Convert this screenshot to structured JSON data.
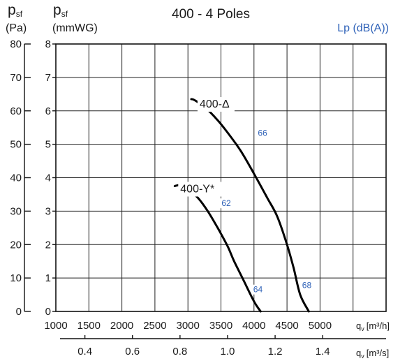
{
  "chart_data": {
    "type": "line",
    "title": "400 - 4 Poles",
    "y_left_outer": {
      "symbol": "p",
      "sub": "sf",
      "unit": "(Pa)",
      "ticks": [
        "80",
        "70",
        "60",
        "50",
        "40",
        "30",
        "20",
        "10",
        "0"
      ],
      "lim": [
        0,
        80
      ]
    },
    "y_left_inner": {
      "symbol": "p",
      "sub": "sf",
      "unit": "(mmWG)",
      "ticks": [
        "8",
        "7",
        "6",
        "5",
        "4",
        "3",
        "2",
        "1",
        "0"
      ],
      "lim": [
        0,
        8
      ]
    },
    "x_top": {
      "ticks": [
        "1000",
        "1500",
        "2000",
        "2500",
        "3000",
        "3500",
        "4000",
        "4500",
        "5000"
      ],
      "label_sym": "q",
      "label_sub": "v",
      "label_unit": "[m³/h]",
      "lim": [
        1000,
        6000
      ]
    },
    "x_bottom": {
      "ticks": [
        "0.4",
        "0.6",
        "0.8",
        "1.0",
        "1.2",
        "1.4"
      ],
      "label_sym": "q",
      "label_sub": "v",
      "label_unit": "[m³/s]"
    },
    "legend_title": "Lp (dB(A))",
    "grid": true,
    "series": [
      {
        "name": "400-Δ",
        "points": [
          [
            3050,
            63.5
          ],
          [
            3100,
            63.2
          ],
          [
            3250,
            61.2
          ],
          [
            3450,
            57.2
          ],
          [
            3600,
            53.5
          ],
          [
            3800,
            48.0
          ],
          [
            4000,
            41.2
          ],
          [
            4200,
            34.0
          ],
          [
            4350,
            28.5
          ],
          [
            4500,
            20.0
          ],
          [
            4600,
            13.0
          ],
          [
            4700,
            5.0
          ],
          [
            4830,
            0
          ]
        ]
      },
      {
        "name": "400-Y*",
        "points": [
          [
            2800,
            37.5
          ],
          [
            2900,
            37.8
          ],
          [
            3000,
            36.5
          ],
          [
            3150,
            34.0
          ],
          [
            3300,
            30.0
          ],
          [
            3450,
            25.0
          ],
          [
            3600,
            19.5
          ],
          [
            3700,
            15.0
          ],
          [
            3850,
            9.0
          ],
          [
            4000,
            3.0
          ],
          [
            4100,
            0
          ]
        ]
      }
    ],
    "annotations": [
      {
        "text": "66",
        "x": 4130,
        "y": 52.5
      },
      {
        "text": "62",
        "x": 3580,
        "y": 31.5
      },
      {
        "text": "64",
        "x": 4060,
        "y": 5.7
      },
      {
        "text": "68",
        "x": 4800,
        "y": 7.0
      }
    ]
  }
}
